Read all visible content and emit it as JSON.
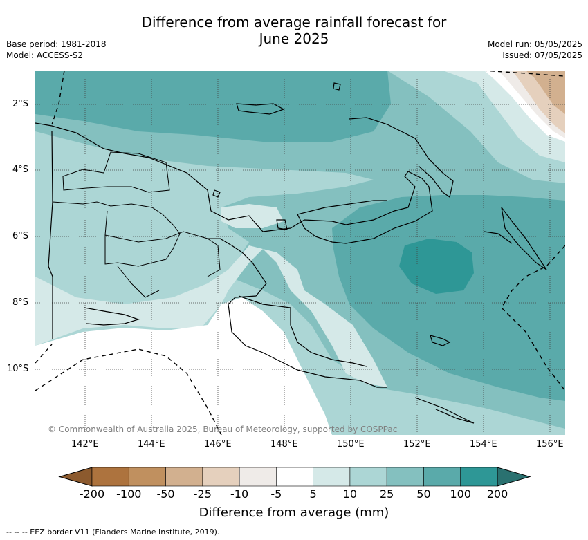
{
  "title": {
    "line1": "Difference from average rainfall forecast for",
    "line2": "June 2025"
  },
  "meta": {
    "base_period": "Base period: 1981-2018",
    "model": "Model: ACCESS-S2",
    "model_run": "Model run: 05/05/2025",
    "issued": "Issued: 07/05/2025"
  },
  "map": {
    "lat_labels": [
      "2°S",
      "4°S",
      "6°S",
      "8°S",
      "10°S"
    ],
    "lon_labels": [
      "142°E",
      "144°E",
      "146°E",
      "148°E",
      "150°E",
      "152°E",
      "154°E",
      "156°E"
    ],
    "copyright": "© Commonwealth of Australia 2025, Bureau of Meteorology, supported by COSPPac"
  },
  "colorbar": {
    "title": "Difference from average (mm)",
    "tick_labels": [
      "-200",
      "-100",
      "-50",
      "-25",
      "-10",
      "-5",
      "5",
      "10",
      "25",
      "50",
      "100",
      "200"
    ],
    "colors": [
      "#8c5a2e",
      "#ad733e",
      "#c0905f",
      "#d2b08f",
      "#e5d0bd",
      "#efebe8",
      "#ffffff",
      "#d5e9e8",
      "#acd6d5",
      "#84c0bf",
      "#5aaaaa",
      "#2e9796",
      "#2a7170"
    ]
  },
  "legend": {
    "eez_label": "-- -- -- EEZ border V11 (Flanders Marine Institute, 2019)."
  }
}
